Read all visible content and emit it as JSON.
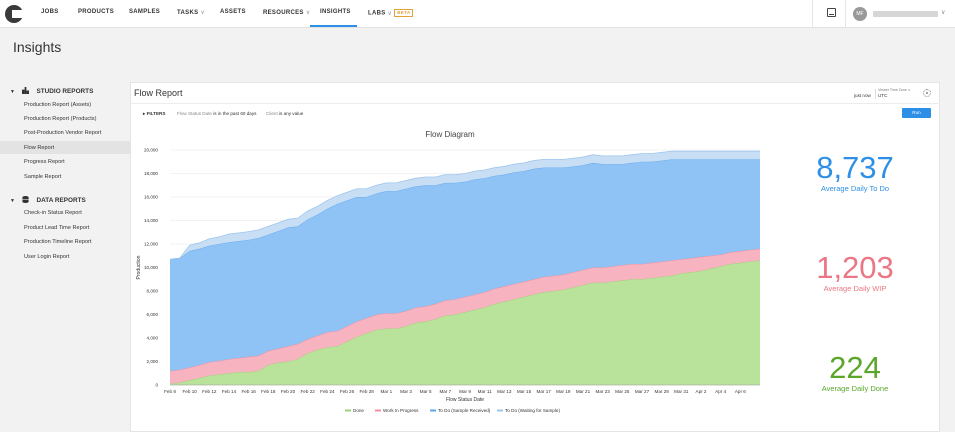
{
  "nav": {
    "items": [
      {
        "label": "JOBS",
        "dropdown": false
      },
      {
        "label": "PRODUCTS",
        "dropdown": false
      },
      {
        "label": "SAMPLES",
        "dropdown": false
      },
      {
        "label": "TASKS",
        "dropdown": true
      },
      {
        "label": "ASSETS",
        "dropdown": false
      },
      {
        "label": "RESOURCES",
        "dropdown": true
      },
      {
        "label": "INSIGHTS",
        "dropdown": false
      },
      {
        "label": "LABS",
        "dropdown": true
      }
    ],
    "active": "INSIGHTS",
    "labs_badge": "BETA",
    "avatar_initials": "MF",
    "accent_color": "#2e8fe6"
  },
  "page": {
    "title": "Insights"
  },
  "sidebar": {
    "sections": [
      {
        "title": "STUDIO REPORTS",
        "items": [
          "Production Report (Assets)",
          "Production Report (Products)",
          "Post-Production Vendor Report",
          "Flow Report",
          "Progress Report",
          "Sample Report"
        ]
      },
      {
        "title": "DATA REPORTS",
        "items": [
          "Check-in Status Report",
          "Product Lead Time Report",
          "Production Timeline Report",
          "User Login Report"
        ]
      }
    ],
    "active_item": "Flow Report"
  },
  "report": {
    "title": "Flow Report",
    "refreshed": "just now",
    "timezone_label": "Viewer Time Zone",
    "timezone_value": "UTC",
    "filters_label": "FILTERS",
    "filter_1": {
      "field": "Flow Status Date",
      "op": "is in the past 60 days"
    },
    "filter_2": {
      "field": "Client",
      "op": "is any value"
    },
    "run_label": "Run"
  },
  "chart_data": {
    "type": "area",
    "title": "Flow Diagram",
    "xlabel": "Flow Status Date",
    "ylabel": "Production",
    "ylim": [
      0,
      20000
    ],
    "yticks": [
      0,
      2000,
      4000,
      6000,
      8000,
      10000,
      12000,
      14000,
      16000,
      18000,
      20000
    ],
    "ytick_labels": [
      "0",
      "2,000",
      "4,000",
      "6,000",
      "8,000",
      "10,000",
      "12,000",
      "14,000",
      "16,000",
      "18,000",
      "20,000"
    ],
    "x_tick_labels": [
      "Feb 8",
      "Feb 10",
      "Feb 12",
      "Feb 14",
      "Feb 16",
      "Feb 18",
      "Feb 20",
      "Feb 22",
      "Feb 24",
      "Feb 26",
      "Feb 28",
      "Mar 1",
      "Mar 3",
      "Mar 5",
      "Mar 7",
      "Mar 9",
      "Mar 11",
      "Mar 13",
      "Mar 15",
      "Mar 17",
      "Mar 19",
      "Mar 21",
      "Mar 23",
      "Mar 25",
      "Mar 27",
      "Mar 29",
      "Mar 31",
      "Apr 2",
      "Apr 4",
      "Apr 6"
    ],
    "stacked": true,
    "grid": true,
    "legend_position": "bottom",
    "series": [
      {
        "name": "Done",
        "color": "#b9e39a",
        "line": "#9bd277",
        "values": [
          100,
          200,
          400,
          600,
          800,
          900,
          1000,
          1100,
          1100,
          1200,
          1700,
          1900,
          2000,
          2200,
          2700,
          3000,
          3200,
          3300,
          3700,
          4100,
          4400,
          4700,
          4800,
          4800,
          5000,
          5300,
          5400,
          5600,
          5900,
          6000,
          6200,
          6400,
          6600,
          6900,
          7100,
          7300,
          7500,
          7700,
          7900,
          8000,
          8100,
          8300,
          8500,
          8700,
          8700,
          8800,
          8900,
          9000,
          9000,
          9100,
          9200,
          9300,
          9500,
          9600,
          9700,
          9900,
          10100,
          10300,
          10400,
          10500,
          10600
        ]
      },
      {
        "name": "Work In Progress",
        "color": "#f7b3bf",
        "line": "#f08c9d",
        "values": [
          1100,
          1100,
          1100,
          1100,
          1150,
          1150,
          1200,
          1200,
          1300,
          1300,
          1200,
          1200,
          1300,
          1300,
          1200,
          1200,
          1300,
          1300,
          1300,
          1300,
          1300,
          1300,
          1300,
          1300,
          1300,
          1300,
          1300,
          1300,
          1300,
          1300,
          1300,
          1300,
          1300,
          1300,
          1300,
          1300,
          1300,
          1300,
          1300,
          1300,
          1300,
          1300,
          1300,
          1300,
          1300,
          1300,
          1300,
          1300,
          1300,
          1300,
          1300,
          1300,
          1200,
          1200,
          1200,
          1100,
          1000,
          1000,
          1000,
          1000,
          1000
        ]
      },
      {
        "name": "To Do (Sample Received)",
        "color": "#8fc3f5",
        "line": "#5aa6ee",
        "values": [
          9500,
          9500,
          9900,
          9900,
          9900,
          9950,
          9950,
          9950,
          9950,
          10000,
          9900,
          10000,
          10100,
          10000,
          10200,
          10300,
          10500,
          10800,
          10700,
          10600,
          10300,
          10300,
          10400,
          10400,
          10400,
          10300,
          10300,
          10100,
          10000,
          9900,
          9800,
          9800,
          9700,
          9600,
          9500,
          9500,
          9400,
          9400,
          9300,
          9200,
          9100,
          9000,
          8900,
          8900,
          8800,
          8700,
          8600,
          8600,
          8700,
          8600,
          8600,
          8600,
          8500,
          8400,
          8300,
          8200,
          8100,
          7900,
          7800,
          7700,
          7600
        ]
      },
      {
        "name": "To Do (Waiting for Sample)",
        "color": "#c8def4",
        "line": "#9ec6ec",
        "values": [
          0,
          0,
          500,
          500,
          600,
          600,
          700,
          700,
          700,
          700,
          700,
          700,
          700,
          700,
          700,
          700,
          700,
          700,
          700,
          700,
          700,
          700,
          700,
          700,
          700,
          700,
          700,
          700,
          700,
          700,
          700,
          700,
          700,
          700,
          700,
          700,
          700,
          700,
          700,
          700,
          700,
          700,
          700,
          700,
          700,
          700,
          700,
          700,
          700,
          700,
          700,
          700,
          700,
          700,
          700,
          700,
          700,
          700,
          700,
          700,
          700
        ]
      }
    ]
  },
  "kpis": [
    {
      "value": "8,737",
      "label": "Average Daily To Do",
      "color": "#2e8fe6"
    },
    {
      "value": "1,203",
      "label": "Average Daily WIP",
      "color": "#ec7684"
    },
    {
      "value": "224",
      "label": "Average Daily Done",
      "color": "#5aa72a"
    }
  ]
}
